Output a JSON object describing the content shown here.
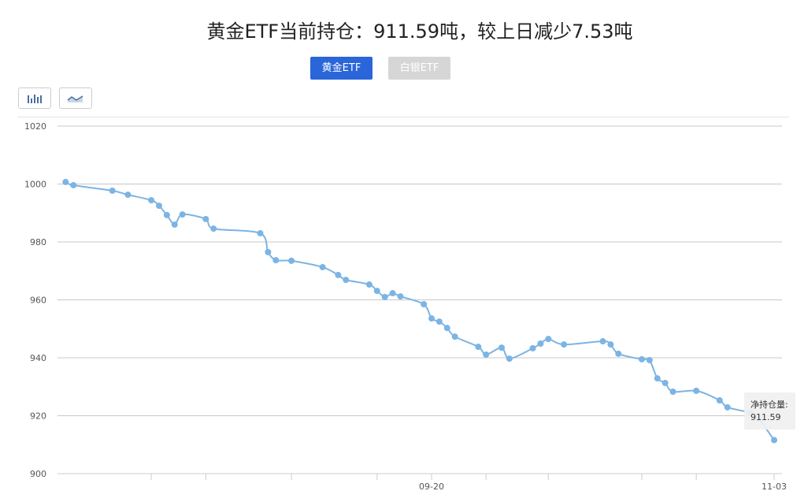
{
  "title": "黄金ETF当前持仓：911.59吨，较上日减少7.53吨",
  "tabs": [
    {
      "label": "黄金ETF",
      "active": true
    },
    {
      "label": "白银ETF",
      "active": false
    }
  ],
  "toolbar": {
    "bar_icon": "bar-chart-icon",
    "line_icon": "line-chart-icon"
  },
  "colors": {
    "line": "#7cb4e4",
    "active_tab": "#2a66d9",
    "inactive_tab": "#d6d6d6"
  },
  "tooltip": {
    "label": "净持仓量:",
    "value": "911.59"
  },
  "chart_data": {
    "type": "line",
    "ylim": [
      900,
      1020
    ],
    "yticks": [
      "900",
      "920",
      "940",
      "960",
      "980",
      "1000",
      "1020"
    ],
    "grid": true,
    "xtick_labels": [
      {
        "date": "09-20",
        "label": "09-20"
      },
      {
        "date": "11-03",
        "label": "11-03"
      }
    ],
    "xticks": [
      "08-15",
      "08-22",
      "09-02",
      "09-13",
      "09-20",
      "09-27",
      "10-05",
      "10-17",
      "10-24",
      "11-03"
    ],
    "x": [
      "08-04",
      "08-05",
      "08-10",
      "08-12",
      "08-15",
      "08-16",
      "08-17",
      "08-18",
      "08-19",
      "08-22",
      "08-23",
      "08-29",
      "08-30",
      "08-31",
      "09-02",
      "09-06",
      "09-08",
      "09-09",
      "09-12",
      "09-13",
      "09-14",
      "09-15",
      "09-16",
      "09-19",
      "09-20",
      "09-21",
      "09-22",
      "09-23",
      "09-26",
      "09-27",
      "09-29",
      "09-30",
      "10-03",
      "10-04",
      "10-05",
      "10-07",
      "10-12",
      "10-13",
      "10-14",
      "10-17",
      "10-18",
      "10-19",
      "10-20",
      "10-21",
      "10-24",
      "10-27",
      "10-28",
      "10-31",
      "11-01",
      "11-03"
    ],
    "values": [
      1000.7,
      999.6,
      997.7,
      996.3,
      994.4,
      992.5,
      989.3,
      986.0,
      989.5,
      987.9,
      984.6,
      983.0,
      976.5,
      973.7,
      973.5,
      971.3,
      968.6,
      966.9,
      965.3,
      963.1,
      961.0,
      962.3,
      961.2,
      958.5,
      953.6,
      952.5,
      950.3,
      947.3,
      943.8,
      941.1,
      943.5,
      939.7,
      943.3,
      944.9,
      946.5,
      944.6,
      945.7,
      944.6,
      941.4,
      939.5,
      939.2,
      932.9,
      931.3,
      928.3,
      928.6,
      925.3,
      922.9,
      921.0,
      919.1,
      911.59
    ]
  }
}
